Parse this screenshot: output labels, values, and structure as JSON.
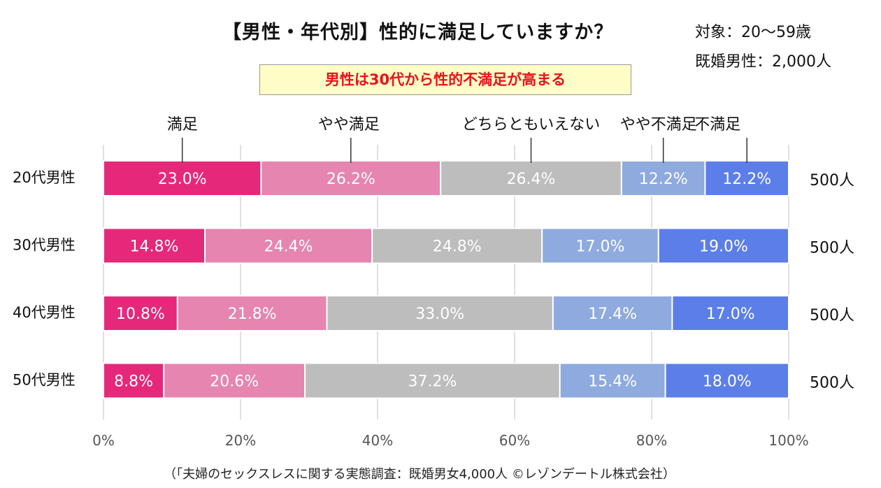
{
  "title": "【男性・年代別】性的に満足していますか？",
  "subject": {
    "line1": "対象：20～59歳",
    "line2": "既婚男性：2,000人"
  },
  "highlight": "男性は30代から性的不満足が高まる",
  "footnote": "（「夫婦のセックスレスに関する実態調査：既婚男女4,000人 ©レゾンデートル株式会社）",
  "chart_data": {
    "type": "bar",
    "orientation": "horizontal",
    "stacked": "percent",
    "categories": [
      "20代男性",
      "30代男性",
      "40代男性",
      "50代男性"
    ],
    "counts": [
      "500人",
      "500人",
      "500人",
      "500人"
    ],
    "series": [
      {
        "name": "満足",
        "color": "#e6287a",
        "values": [
          23.0,
          14.8,
          10.8,
          8.8
        ]
      },
      {
        "name": "やや満足",
        "color": "#e585b0",
        "values": [
          26.2,
          24.4,
          21.8,
          20.6
        ]
      },
      {
        "name": "どちらともいえない",
        "color": "#bdbdbd",
        "values": [
          26.4,
          24.8,
          33.0,
          37.2
        ]
      },
      {
        "name": "やや不満足",
        "color": "#8eaadf",
        "values": [
          12.2,
          17.0,
          17.4,
          15.4
        ]
      },
      {
        "name": "不満足",
        "color": "#5b7ee8",
        "values": [
          12.2,
          19.0,
          17.0,
          18.0
        ]
      }
    ],
    "xlim": [
      0,
      100
    ],
    "xticks": [
      "0%",
      "20%",
      "40%",
      "60%",
      "80%",
      "100%"
    ],
    "grid": true,
    "legend": "top, callout labels above first bar"
  }
}
